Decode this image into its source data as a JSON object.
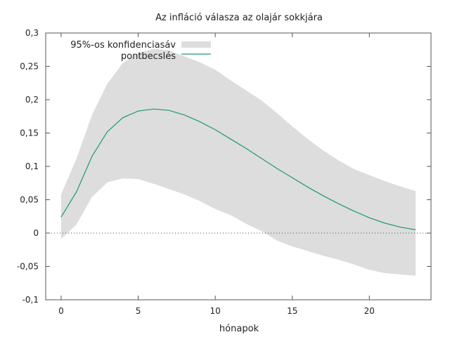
{
  "chart_data": {
    "type": "area",
    "title": "Az infláció válasza az olajár sokkjára",
    "xlabel": "hónapok",
    "ylabel": "",
    "xlim": [
      -1,
      24
    ],
    "ylim": [
      -0.1,
      0.3
    ],
    "x_ticks": [
      0,
      5,
      10,
      15,
      20
    ],
    "x_tick_labels": [
      "0",
      "5",
      "10",
      "15",
      "20"
    ],
    "y_ticks": [
      -0.1,
      -0.05,
      0,
      0.05,
      0.1,
      0.15,
      0.2,
      0.25,
      0.3
    ],
    "y_tick_labels": [
      "-0,1",
      "-0,05",
      "0",
      "0,05",
      "0,1",
      "0,15",
      "0,2",
      "0,25",
      "0,3"
    ],
    "grid": false,
    "zero_line": "dotted",
    "legend_position": "top-left",
    "x": [
      0,
      1,
      2,
      3,
      4,
      5,
      6,
      7,
      8,
      9,
      10,
      11,
      12,
      13,
      14,
      15,
      16,
      17,
      18,
      19,
      20,
      21,
      22,
      23
    ],
    "series": [
      {
        "name": "95%-os konfidenciasáv",
        "kind": "band",
        "color": "#dddddd",
        "lower": [
          -0.009,
          0.013,
          0.054,
          0.076,
          0.082,
          0.081,
          0.074,
          0.066,
          0.058,
          0.048,
          0.036,
          0.027,
          0.014,
          0.003,
          -0.011,
          -0.02,
          -0.027,
          -0.034,
          -0.04,
          -0.047,
          -0.055,
          -0.06,
          -0.062,
          -0.064
        ],
        "upper": [
          0.058,
          0.112,
          0.177,
          0.224,
          0.255,
          0.27,
          0.276,
          0.274,
          0.265,
          0.256,
          0.245,
          0.229,
          0.214,
          0.199,
          0.18,
          0.16,
          0.141,
          0.124,
          0.109,
          0.096,
          0.087,
          0.078,
          0.07,
          0.063
        ]
      },
      {
        "name": "pontbecslés",
        "kind": "line",
        "color": "#1a9a6e",
        "values": [
          0.024,
          0.062,
          0.115,
          0.152,
          0.173,
          0.183,
          0.186,
          0.184,
          0.177,
          0.167,
          0.155,
          0.141,
          0.127,
          0.112,
          0.097,
          0.083,
          0.069,
          0.056,
          0.044,
          0.033,
          0.023,
          0.015,
          0.009,
          0.005
        ]
      }
    ]
  }
}
